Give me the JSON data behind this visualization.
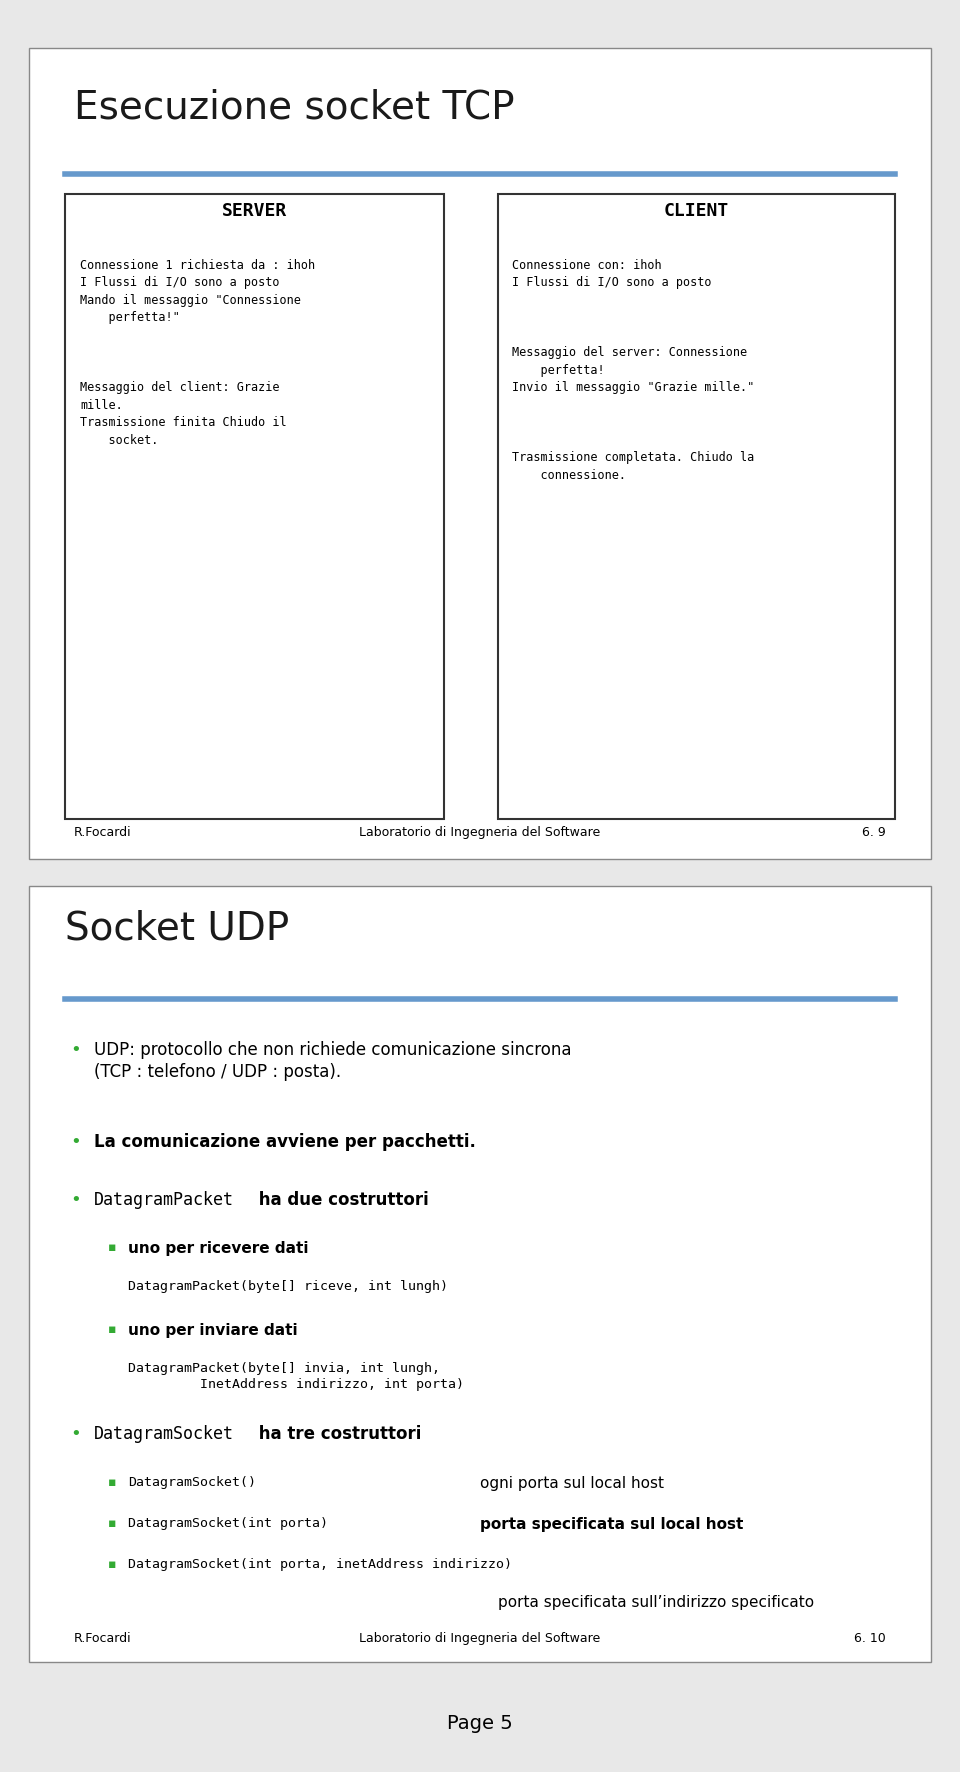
{
  "bg_color": "#ffffff",
  "page_bg": "#e8e8e8",
  "slide1": {
    "title": "Esecuzione socket TCP",
    "title_color": "#1a1a1a",
    "title_fontsize": 28,
    "underline_color": "#6699cc",
    "server_header": "SERVER",
    "client_header": "CLIENT",
    "footer_left": "R.Focardi",
    "footer_center": "Laboratorio di Ingegneria del Software",
    "footer_right": "6. 9"
  },
  "slide2": {
    "title": "Socket UDP",
    "title_color": "#1a1a1a",
    "title_fontsize": 28,
    "underline_color": "#6699cc",
    "bullet_color": "#33aa33",
    "sub_bullet_color": "#33aa33",
    "footer_left": "R.Focardi",
    "footer_center": "Laboratorio di Ingegneria del Software",
    "footer_right": "6. 10"
  },
  "page_label": "Page 5"
}
